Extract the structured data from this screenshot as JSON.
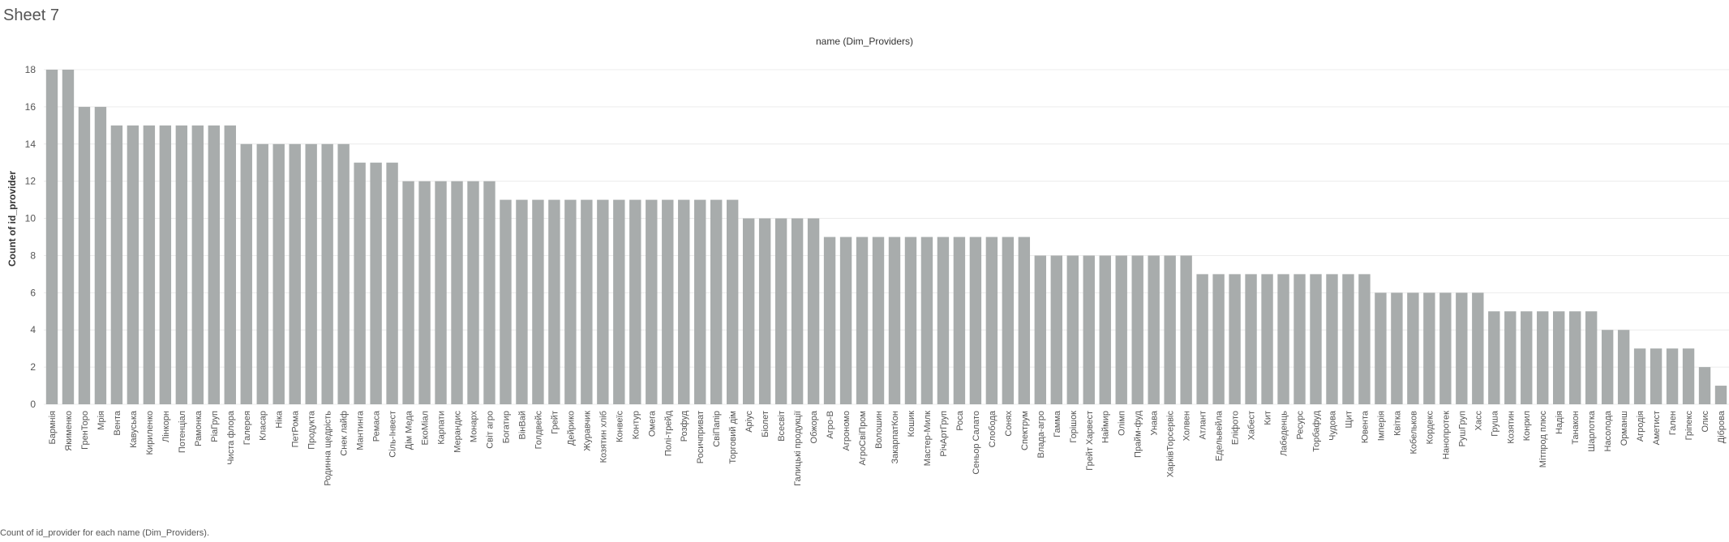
{
  "sheet": {
    "title": "Sheet 7",
    "column_header": "name (Dim_Providers)",
    "caption": "Count of id_provider for each name (Dim_Providers)."
  },
  "colors": {
    "bar": "#a8acac",
    "grid": "#ececec",
    "axis_text": "#555555"
  },
  "chart_data": {
    "type": "bar",
    "title": "name (Dim_Providers)",
    "xlabel": "",
    "ylabel": "Count of id_provider",
    "ylim": [
      0,
      18
    ],
    "yticks": [
      0,
      2,
      4,
      6,
      8,
      10,
      12,
      14,
      16,
      18
    ],
    "grid": true,
    "categories": [
      "Бармнія",
      "Якименко",
      "ГренТоро",
      "Мрія",
      "Вента",
      "Кавуська",
      "Кириленко",
      "Лінкорн",
      "Потенціал",
      "Рамонка",
      "РіаГруп",
      "Чиста флора",
      "Галерея",
      "Класар",
      "Ніка",
      "ПетРома",
      "Продукта",
      "Родинна щедрість",
      "Снек лайф",
      "Мантинга",
      "Ремаса",
      "Сіль-Інвест",
      "Дім Меда",
      "ЕкоМіал",
      "Карпати",
      "Мерандис",
      "Монарх",
      "Світ агро",
      "Богатир",
      "ВінВай",
      "Голдвейс",
      "Грейт",
      "Дейрико",
      "Журавчик",
      "Козятин хліб",
      "Конвеїс",
      "Контур",
      "Омега",
      "Полі-трейд",
      "Розфуд",
      "Росичприват",
      "СвіПапір",
      "Торговий дім",
      "Аріус",
      "Біолет",
      "Всесвіт",
      "Галицькі продукції",
      "Обжора",
      "Агро-В",
      "Агрономо",
      "АгроСвіПром",
      "Волошин",
      "ЗакарпатКон",
      "Кошик",
      "Мастер-Милк",
      "РічАртГруп",
      "Роса",
      "Сеньор Салато",
      "Слобода",
      "Сонях",
      "Спектрум",
      "Влада-агро",
      "Гамма",
      "Горішок",
      "Грейт Харвест",
      "Наймир",
      "Олімп",
      "Прайм-фуд",
      "Унава",
      "ХарківТорсервіс",
      "Холвен",
      "Атлант",
      "Едельвейла",
      "Еліфото",
      "Хабест",
      "Кит",
      "Лабеденць",
      "Ресурс",
      "Торбафуд",
      "Чудова",
      "Щит",
      "Ювента",
      "Імперія",
      "Квітка",
      "Кобельков",
      "Кордекс",
      "Нанопротек",
      "РушГруп",
      "Хасс",
      "Груша",
      "Козятин",
      "Конрил",
      "Мітпрод плюс",
      "Надія",
      "Танакон",
      "Шарлотка",
      "Насолода",
      "Орманш",
      "Агродія",
      "Аметист",
      "Гален",
      "Гріпекс",
      "Олис",
      "Діброва"
    ],
    "values": [
      18,
      18,
      16,
      16,
      15,
      15,
      15,
      15,
      15,
      15,
      15,
      15,
      14,
      14,
      14,
      14,
      14,
      14,
      14,
      13,
      13,
      13,
      12,
      12,
      12,
      12,
      12,
      12,
      11,
      11,
      11,
      11,
      11,
      11,
      11,
      11,
      11,
      11,
      11,
      11,
      11,
      11,
      11,
      10,
      10,
      10,
      10,
      10,
      9,
      9,
      9,
      9,
      9,
      9,
      9,
      9,
      9,
      9,
      9,
      9,
      9,
      8,
      8,
      8,
      8,
      8,
      8,
      8,
      8,
      8,
      8,
      7,
      7,
      7,
      7,
      7,
      7,
      7,
      7,
      7,
      7,
      7,
      6,
      6,
      6,
      6,
      6,
      6,
      6,
      5,
      5,
      5,
      5,
      5,
      5,
      5,
      4,
      4,
      3,
      3,
      3,
      3,
      2,
      1
    ]
  }
}
